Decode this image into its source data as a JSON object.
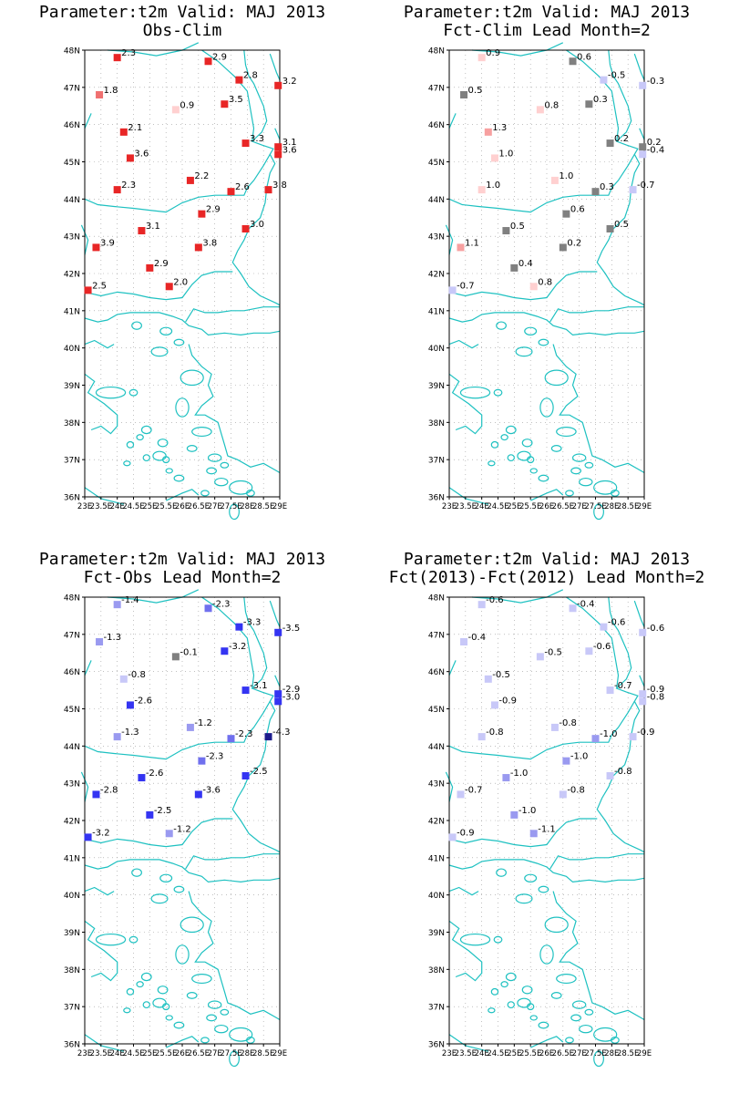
{
  "lon_labels": [
    "23E",
    "23.5E",
    "24E",
    "24.5E",
    "25E",
    "25.5E",
    "26E",
    "26.5E",
    "27E",
    "27.5E",
    "28E",
    "28.5E",
    "29E"
  ],
  "lat_labels": [
    "36N",
    "37N",
    "38N",
    "39N",
    "40N",
    "41N",
    "42N",
    "43N",
    "44N",
    "45N",
    "46N",
    "47N",
    "48N"
  ],
  "colors": {
    "coastline": "#1ec1c1",
    "grid": "#9a9a9a",
    "warm": [
      "#ffd0d0",
      "#f7a0a0",
      "#f07070",
      "#e82626"
    ],
    "neutral": "#808080",
    "cool": [
      "#c8c8f8",
      "#9a9af0",
      "#7070ee",
      "#3434f2",
      "#1c1c8c"
    ]
  },
  "stations": [
    {
      "lon": 24.0,
      "lat": 47.8
    },
    {
      "lon": 23.45,
      "lat": 46.8
    },
    {
      "lon": 24.2,
      "lat": 45.8
    },
    {
      "lon": 24.4,
      "lat": 45.1
    },
    {
      "lon": 24.0,
      "lat": 44.25
    },
    {
      "lon": 23.35,
      "lat": 42.7
    },
    {
      "lon": 23.1,
      "lat": 41.55
    },
    {
      "lon": 24.75,
      "lat": 43.15
    },
    {
      "lon": 25.0,
      "lat": 42.15
    },
    {
      "lon": 25.6,
      "lat": 41.65
    },
    {
      "lon": 25.8,
      "lat": 46.4
    },
    {
      "lon": 26.25,
      "lat": 44.5
    },
    {
      "lon": 26.6,
      "lat": 43.6
    },
    {
      "lon": 26.5,
      "lat": 42.7
    },
    {
      "lon": 26.8,
      "lat": 47.7
    },
    {
      "lon": 27.3,
      "lat": 46.55
    },
    {
      "lon": 27.5,
      "lat": 44.2
    },
    {
      "lon": 27.75,
      "lat": 47.2
    },
    {
      "lon": 27.95,
      "lat": 45.5
    },
    {
      "lon": 27.95,
      "lat": 43.2
    },
    {
      "lon": 28.65,
      "lat": 44.25
    },
    {
      "lon": 28.95,
      "lat": 47.05
    },
    {
      "lon": 28.95,
      "lat": 45.4
    },
    {
      "lon": 28.95,
      "lat": 45.2
    }
  ],
  "panels": [
    {
      "title_line1": "Parameter:t2m Valid: MAJ 2013",
      "title_line2": "Obs-Clim",
      "labels": [
        "2.3",
        "1.8",
        "2.1",
        "3.6",
        "2.3",
        "3.9",
        "2.5",
        "3.1",
        "2.9",
        "2.0",
        "0.9",
        "2.2",
        "2.9",
        "3.8",
        "2.9",
        "3.5",
        "2.6",
        "2.8",
        "3.3",
        "3.0",
        "3.8",
        "3.2",
        "3.1",
        "3.6"
      ],
      "values": [
        2.3,
        1.8,
        2.1,
        3.6,
        2.3,
        3.9,
        2.5,
        3.1,
        2.9,
        2.0,
        0.9,
        2.2,
        2.9,
        3.8,
        2.9,
        3.5,
        2.6,
        2.8,
        3.3,
        3.0,
        3.8,
        3.2,
        3.1,
        3.6
      ]
    },
    {
      "title_line1": "Parameter:t2m Valid: MAJ 2013",
      "title_line2": "Fct-Clim Lead Month=2",
      "labels": [
        "0.9",
        "0.5",
        "1.3",
        "1.0",
        "1.0",
        "1.1",
        "-0.7",
        "0.5",
        "0.4",
        "0.8",
        "0.8",
        "1.0",
        "0.6",
        "0.2",
        "0.6",
        "0.3",
        "0.3",
        "-0.5",
        "0.2",
        "0.5",
        "-0.7",
        "-0.3",
        "0.2",
        "-0.4"
      ],
      "values": [
        0.9,
        0.5,
        1.3,
        1.0,
        1.0,
        1.1,
        -0.7,
        0.5,
        0.4,
        0.8,
        0.8,
        1.0,
        0.6,
        0.2,
        0.6,
        0.3,
        0.3,
        -0.5,
        0.2,
        0.5,
        -0.7,
        -0.3,
        0.2,
        -0.4
      ]
    },
    {
      "title_line1": "Parameter:t2m Valid: MAJ 2013",
      "title_line2": "Fct-Obs Lead Month=2",
      "labels": [
        "-1.4",
        "-1.3",
        "-0.8",
        "-2.6",
        "-1.3",
        "-2.8",
        "-3.2",
        "-2.6",
        "-2.5",
        "-1.2",
        "-0.1",
        "-1.2",
        "-2.3",
        "-3.6",
        "-2.3",
        "-3.2",
        "-2.3",
        "-3.3",
        "-3.1",
        "-2.5",
        "-4.3",
        "-3.5",
        "-2.9",
        "-3.0"
      ],
      "values": [
        -1.4,
        -1.3,
        -0.8,
        -2.6,
        -1.3,
        -2.8,
        -3.2,
        -2.6,
        -2.5,
        -1.2,
        -0.1,
        -1.2,
        -2.3,
        -3.6,
        -2.3,
        -3.2,
        -2.3,
        -3.3,
        -3.1,
        -2.5,
        -4.3,
        -3.5,
        -2.9,
        -3.0
      ]
    },
    {
      "title_line1": "Parameter:t2m Valid: MAJ 2013",
      "title_line2": "Fct(2013)-Fct(2012) Lead Month=2",
      "labels": [
        "-0.6",
        "-0.4",
        "-0.5",
        "-0.9",
        "-0.8",
        "-0.7",
        "-0.9",
        "-1.0",
        "-1.0",
        "-1.1",
        "-0.5",
        "-0.8",
        "-1.0",
        "-0.8",
        "-0.4",
        "-0.6",
        "-1.0",
        "-0.6",
        "-0.7",
        "-0.8",
        "-0.9",
        "-0.6",
        "-0.9",
        "-0.8"
      ],
      "values": [
        -0.6,
        -0.4,
        -0.5,
        -0.9,
        -0.8,
        -0.7,
        -0.9,
        -1.0,
        -1.0,
        -1.1,
        -0.5,
        -0.8,
        -1.0,
        -0.8,
        -0.4,
        -0.6,
        -1.0,
        -0.6,
        -0.7,
        -0.8,
        -0.9,
        -0.6,
        -0.9,
        -0.8
      ]
    }
  ]
}
